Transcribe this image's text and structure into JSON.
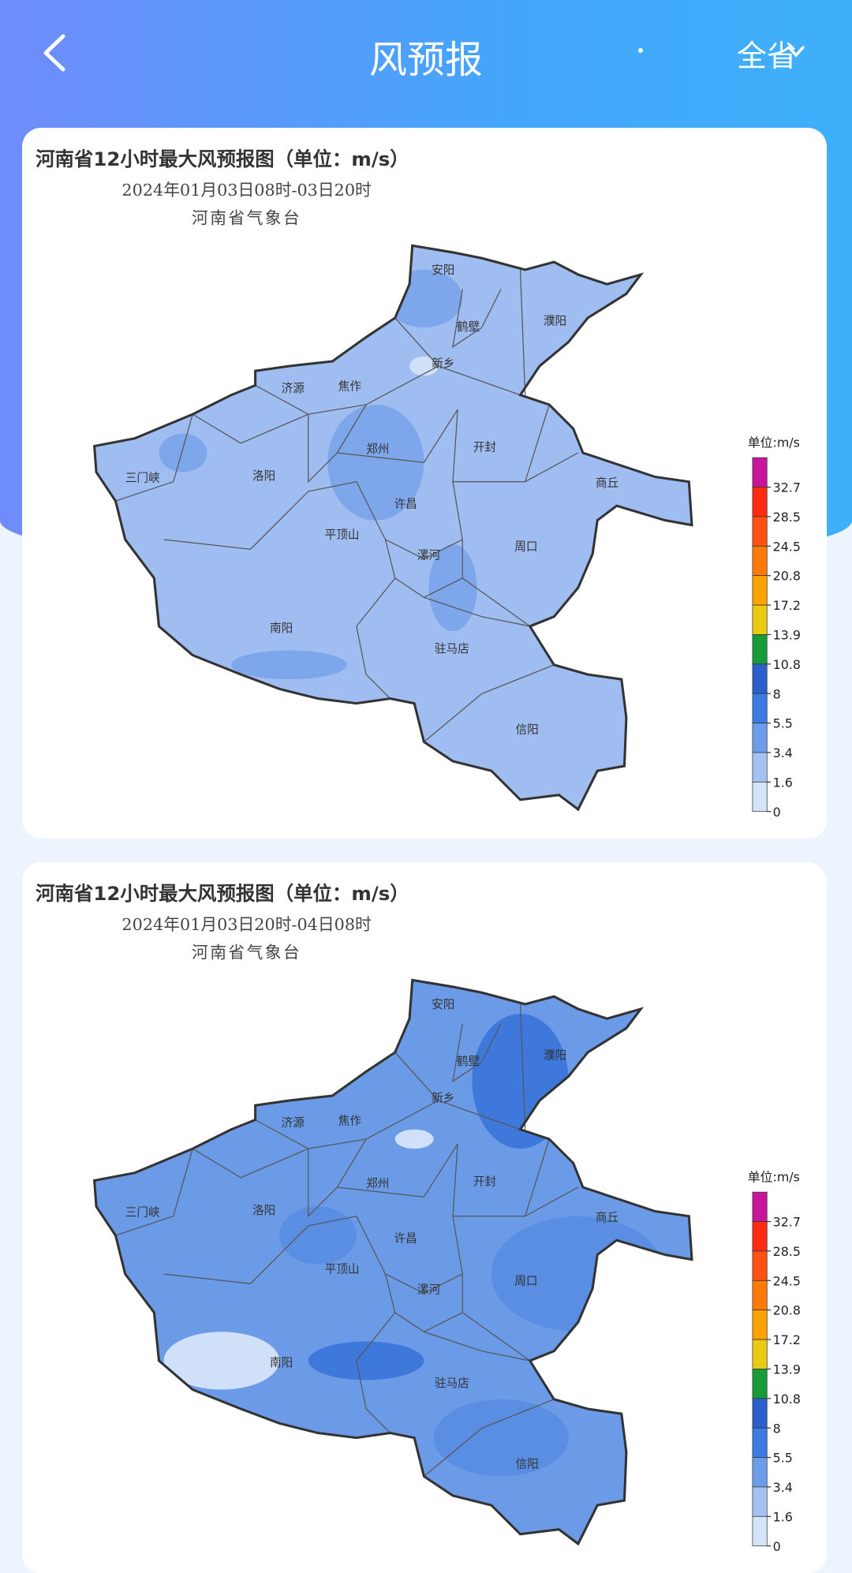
{
  "header": {
    "title": "风预报",
    "region": "全省"
  },
  "cards": [
    {
      "title": "河南省12小时最大风预报图（单位：m/s）",
      "period": "2024年01月03日08时-03日20时",
      "issuer": "河南省气象台",
      "cities": [
        "安阳",
        "濮阳",
        "鹤壁",
        "新乡",
        "济源",
        "焦作",
        "郑州",
        "开封",
        "三门峡",
        "洛阳",
        "商丘",
        "许昌",
        "平顶山",
        "漯河",
        "周口",
        "南阳",
        "驻马店",
        "信阳"
      ],
      "legend": {
        "unit": "单位:m/s",
        "ticks": [
          "32.7",
          "28.5",
          "24.5",
          "20.8",
          "17.2",
          "13.9",
          "10.8",
          "8",
          "5.5",
          "3.4",
          "1.6",
          "0"
        ]
      }
    },
    {
      "title": "河南省12小时最大风预报图（单位：m/s）",
      "period": "2024年01月03日20时-04日08时",
      "issuer": "河南省气象台",
      "cities": [
        "安阳",
        "濮阳",
        "鹤壁",
        "新乡",
        "济源",
        "焦作",
        "郑州",
        "开封",
        "三门峡",
        "洛阳",
        "商丘",
        "许昌",
        "平顶山",
        "漯河",
        "周口",
        "南阳",
        "驻马店",
        "信阳"
      ],
      "legend": {
        "unit": "单位:m/s",
        "ticks": [
          "32.7",
          "28.5",
          "24.5",
          "20.8",
          "17.2",
          "13.9",
          "10.8",
          "8",
          "5.5",
          "3.4",
          "1.6",
          "0"
        ]
      }
    }
  ]
}
